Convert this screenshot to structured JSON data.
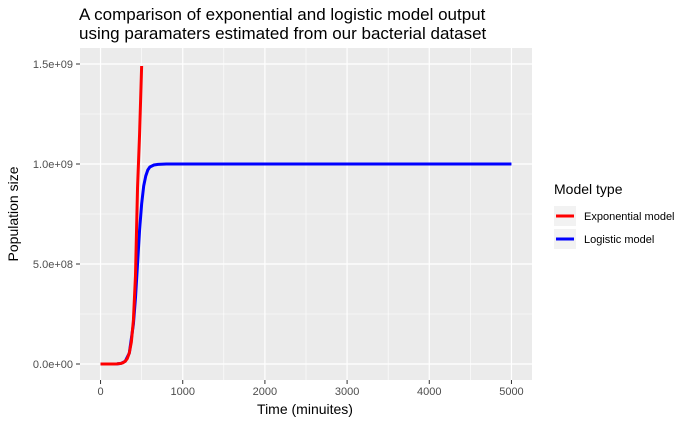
{
  "chart_data": {
    "type": "line",
    "title": [
      "A comparison of exponential and logistic model output",
      "using paramaters estimated from our bacterial dataset"
    ],
    "xlabel": "Time (minuites)",
    "ylabel": "Population size",
    "xlim": [
      -250,
      5250
    ],
    "ylim": [
      -80000000,
      1580000000
    ],
    "x_ticks": [
      {
        "value": 0,
        "label": "0"
      },
      {
        "value": 1000,
        "label": "1000"
      },
      {
        "value": 2000,
        "label": "2000"
      },
      {
        "value": 3000,
        "label": "3000"
      },
      {
        "value": 4000,
        "label": "4000"
      },
      {
        "value": 5000,
        "label": "5000"
      }
    ],
    "y_ticks": [
      {
        "value": 0,
        "label": "0.0e+00"
      },
      {
        "value": 500000000,
        "label": "5.0e+08"
      },
      {
        "value": 1000000000,
        "label": "1.0e+09"
      },
      {
        "value": 1500000000,
        "label": "1.5e+09"
      }
    ],
    "grid": true,
    "legend": {
      "title": "Model type",
      "placement": "right"
    },
    "series": [
      {
        "name": "Exponential model",
        "color": "#ff0000",
        "x": [
          0,
          50,
          100,
          150,
          200,
          225,
          250,
          275,
          300,
          325,
          350,
          375,
          400,
          425,
          450,
          475,
          500
        ],
        "y": [
          5000,
          12000,
          50000,
          200000,
          800000,
          1600000,
          3300000,
          6700000,
          13500000,
          27000000,
          55000000,
          110000000,
          220000000,
          440000000,
          880000000,
          1150000000,
          1490000000
        ]
      },
      {
        "name": "Logistic model",
        "color": "#0000ff",
        "x": [
          0,
          100,
          200,
          250,
          300,
          350,
          400,
          425,
          450,
          475,
          500,
          525,
          550,
          575,
          600,
          650,
          700,
          800,
          1000,
          1500,
          2000,
          3000,
          4000,
          5000
        ],
        "y": [
          5000,
          50000,
          800000,
          3300000,
          13500000,
          55000000,
          200000000,
          330000000,
          500000000,
          670000000,
          800000000,
          890000000,
          940000000,
          970000000,
          985000000,
          995000000,
          998000000,
          1000000000,
          1000000000,
          1000000000,
          1000000000,
          1000000000,
          1000000000,
          1000000000
        ]
      }
    ]
  }
}
